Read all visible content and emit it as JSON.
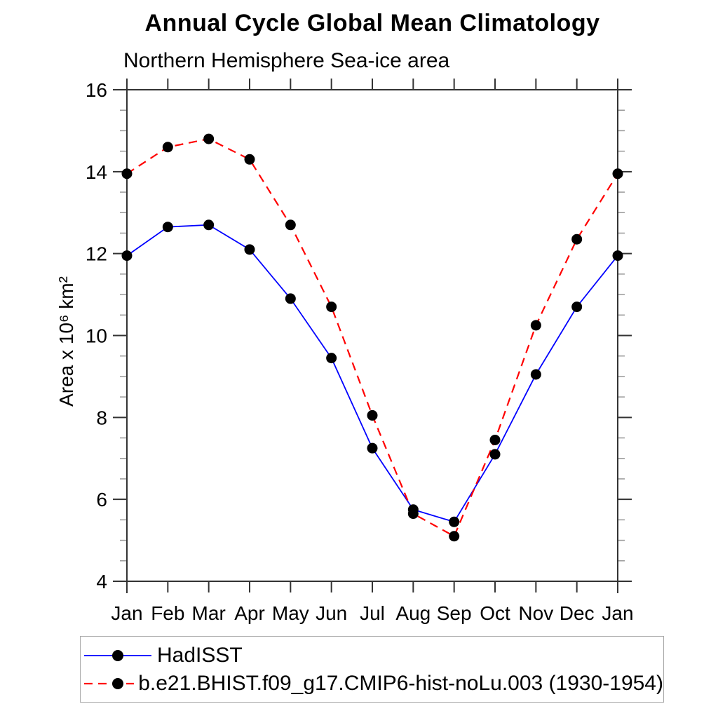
{
  "chart_data": {
    "type": "line",
    "title": "Annual Cycle Global Mean Climatology",
    "subtitle": "Northern Hemisphere Sea-ice area",
    "ylabel": "Area x 10⁶ km²",
    "categories": [
      "Jan",
      "Feb",
      "Mar",
      "Apr",
      "May",
      "Jun",
      "Jul",
      "Aug",
      "Sep",
      "Oct",
      "Nov",
      "Dec",
      "Jan"
    ],
    "ylim": [
      4,
      16
    ],
    "y_major_ticks": [
      4,
      6,
      8,
      10,
      12,
      14,
      16
    ],
    "y_minor_step": 0.5,
    "grid": false,
    "legend_position": "bottom-left",
    "axis_color": "#333333",
    "minor_tick_color": "#999999",
    "marker": "filled-circle",
    "marker_color": "#000000",
    "series": [
      {
        "name": "HadISST",
        "color": "#0000ff",
        "line_style": "solid",
        "values": [
          11.95,
          12.65,
          12.7,
          12.1,
          10.9,
          9.45,
          7.25,
          5.75,
          5.45,
          7.1,
          9.05,
          10.7,
          11.95
        ]
      },
      {
        "name": "b.e21.BHIST.f09_g17.CMIP6-hist-noLu.003 (1930-1954)",
        "color": "#ff0000",
        "line_style": "dashed",
        "values": [
          13.95,
          14.6,
          14.8,
          14.3,
          12.7,
          10.7,
          8.05,
          5.65,
          5.1,
          7.45,
          10.25,
          12.35,
          13.95
        ]
      }
    ]
  }
}
